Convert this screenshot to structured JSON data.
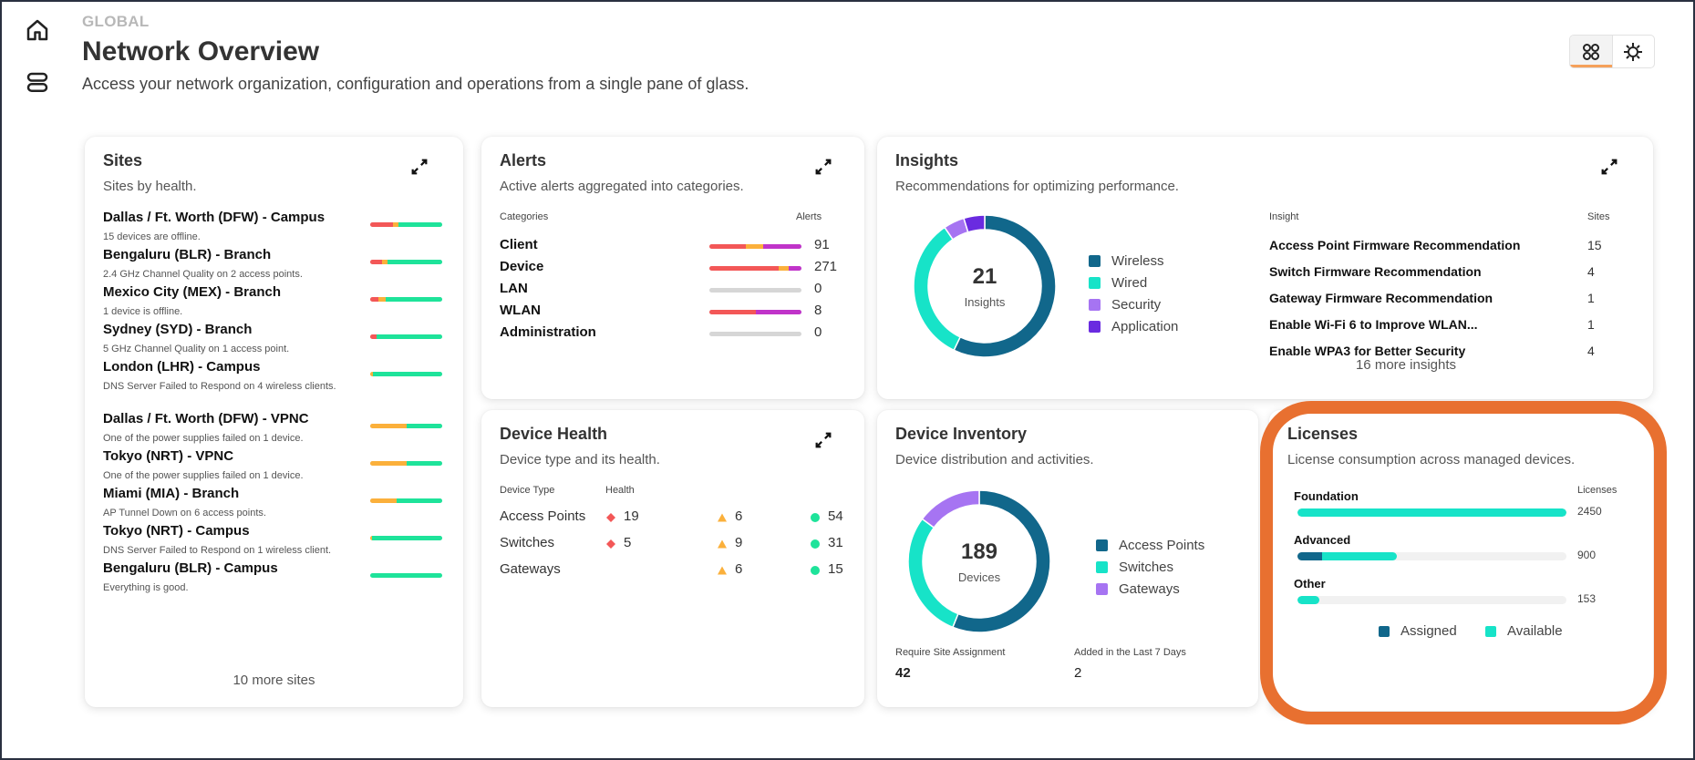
{
  "sidebar": {
    "items": [
      {
        "name": "home",
        "icon": "home-icon"
      },
      {
        "name": "list",
        "icon": "list-icon"
      }
    ]
  },
  "header": {
    "eyebrow": "GLOBAL",
    "title": "Network Overview",
    "subtitle": "Access your network organization, configuration and operations from a single pane of glass.",
    "view_toggle": [
      {
        "name": "grid-view",
        "icon": "grid-icon",
        "active": true
      },
      {
        "name": "settings",
        "icon": "gear-icon",
        "active": false
      }
    ]
  },
  "colors": {
    "critical": "#f35757",
    "major": "#fbb03b",
    "minor": "#c034c9",
    "good": "#1ee39a",
    "empty": "#d6d6d6",
    "primary_dark": "#11678b",
    "teal": "#17e3c8",
    "lavender": "#a674f2",
    "purple": "#6a2be0",
    "annotation": "#e87030"
  },
  "sites": {
    "title": "Sites",
    "subtitle": "Sites by health.",
    "items": [
      {
        "name": "Dallas / Ft. Worth (DFW) - Campus",
        "desc": "15 devices are offline.",
        "health": {
          "critical": 32,
          "major": 7,
          "good": 61
        }
      },
      {
        "name": "Bengaluru (BLR) - Branch",
        "desc": "2.4 GHz Channel Quality on 2 access points.",
        "health": {
          "critical": 16,
          "major": 8,
          "good": 76
        }
      },
      {
        "name": "Mexico City (MEX) - Branch",
        "desc": "1 device is offline.",
        "health": {
          "critical": 11,
          "major": 10,
          "good": 79
        }
      },
      {
        "name": "Sydney (SYD) - Branch",
        "desc": "5 GHz Channel Quality on 1 access point.",
        "health": {
          "critical": 9,
          "major": 0,
          "good": 91
        }
      },
      {
        "name": "London (LHR) - Campus",
        "desc": "DNS Server Failed to Respond on 4 wireless clients.",
        "health": {
          "critical": 0,
          "major": 4,
          "good": 96
        }
      },
      {
        "name": "Dallas / Ft. Worth (DFW) - VPNC",
        "desc": "One of the power supplies failed on 1 device.",
        "health": {
          "critical": 0,
          "major": 50,
          "good": 50
        }
      },
      {
        "name": "Tokyo (NRT) - VPNC",
        "desc": "One of the power supplies failed on 1 device.",
        "health": {
          "critical": 0,
          "major": 50,
          "good": 50
        }
      },
      {
        "name": "Miami (MIA) - Branch",
        "desc": "AP Tunnel Down on 6 access points.",
        "health": {
          "critical": 0,
          "major": 37,
          "good": 63
        }
      },
      {
        "name": "Tokyo (NRT) - Campus",
        "desc": "DNS Server Failed to Respond on 1 wireless client.",
        "health": {
          "critical": 0,
          "major": 3,
          "good": 97
        }
      },
      {
        "name": "Bengaluru (BLR) - Campus",
        "desc": "Everything is good.",
        "health": {
          "critical": 0,
          "major": 0,
          "good": 100
        }
      }
    ],
    "more": "10 more sites"
  },
  "alerts": {
    "title": "Alerts",
    "subtitle": "Active alerts aggregated into categories.",
    "col_category": "Categories",
    "col_alerts": "Alerts",
    "rows": [
      {
        "label": "Client",
        "count": "91",
        "split": {
          "critical": 40,
          "major": 18,
          "minor": 42
        }
      },
      {
        "label": "Device",
        "count": "271",
        "split": {
          "critical": 75,
          "major": 11,
          "minor": 14
        }
      },
      {
        "label": "LAN",
        "count": "0",
        "split": {
          "critical": 0,
          "major": 0,
          "minor": 0
        }
      },
      {
        "label": "WLAN",
        "count": "8",
        "split": {
          "critical": 50,
          "major": 0,
          "minor": 50
        }
      },
      {
        "label": "Administration",
        "count": "0",
        "split": {
          "critical": 0,
          "major": 0,
          "minor": 0
        }
      }
    ]
  },
  "insights": {
    "title": "Insights",
    "subtitle": "Recommendations for optimizing performance.",
    "total": "21",
    "total_caption": "Insights",
    "legend": [
      {
        "label": "Wireless",
        "value": 12,
        "color": "#11678b"
      },
      {
        "label": "Wired",
        "value": 7,
        "color": "#17e3c8"
      },
      {
        "label": "Security",
        "value": 1,
        "color": "#a674f2"
      },
      {
        "label": "Application",
        "value": 1,
        "color": "#6a2be0"
      }
    ],
    "col_insight": "Insight",
    "col_sites": "Sites",
    "rows": [
      {
        "label": "Access Point Firmware Recommendation",
        "sites": "15"
      },
      {
        "label": "Switch Firmware Recommendation",
        "sites": "4"
      },
      {
        "label": "Gateway Firmware Recommendation",
        "sites": "1"
      },
      {
        "label": "Enable Wi-Fi 6 to Improve WLAN...",
        "sites": "1"
      },
      {
        "label": "Enable WPA3 for Better Security",
        "sites": "4"
      }
    ],
    "more": "16 more insights"
  },
  "device_health": {
    "title": "Device Health",
    "subtitle": "Device type and its health.",
    "col_type": "Device Type",
    "col_health": "Health",
    "rows": [
      {
        "label": "Access Points",
        "critical": "19",
        "warning": "6",
        "good": "54"
      },
      {
        "label": "Switches",
        "critical": "5",
        "warning": "9",
        "good": "31"
      },
      {
        "label": "Gateways",
        "critical": null,
        "warning": "6",
        "good": "15"
      }
    ]
  },
  "device_inventory": {
    "title": "Device Inventory",
    "subtitle": "Device distribution and activities.",
    "total": "189",
    "total_caption": "Devices",
    "legend": [
      {
        "label": "Access Points",
        "value": 106,
        "color": "#11678b"
      },
      {
        "label": "Switches",
        "value": 55,
        "color": "#17e3c8"
      },
      {
        "label": "Gateways",
        "value": 28,
        "color": "#a674f2"
      }
    ],
    "stats": [
      {
        "label": "Require Site Assignment",
        "value": "42"
      },
      {
        "label": "Added in the Last 7 Days",
        "value": "2"
      }
    ]
  },
  "licenses": {
    "title": "Licenses",
    "subtitle": "License consumption across managed devices.",
    "col_licenses": "Licenses",
    "rows": [
      {
        "label": "Foundation",
        "total": "2450",
        "assigned_pct": 0,
        "available_pct": 100
      },
      {
        "label": "Advanced",
        "total": "900",
        "assigned_pct": 9,
        "available_pct": 28
      },
      {
        "label": "Other",
        "total": "153",
        "assigned_pct": 0,
        "available_pct": 8
      }
    ],
    "legend": [
      {
        "label": "Assigned",
        "color": "#11678b"
      },
      {
        "label": "Available",
        "color": "#17e3c8"
      }
    ]
  }
}
